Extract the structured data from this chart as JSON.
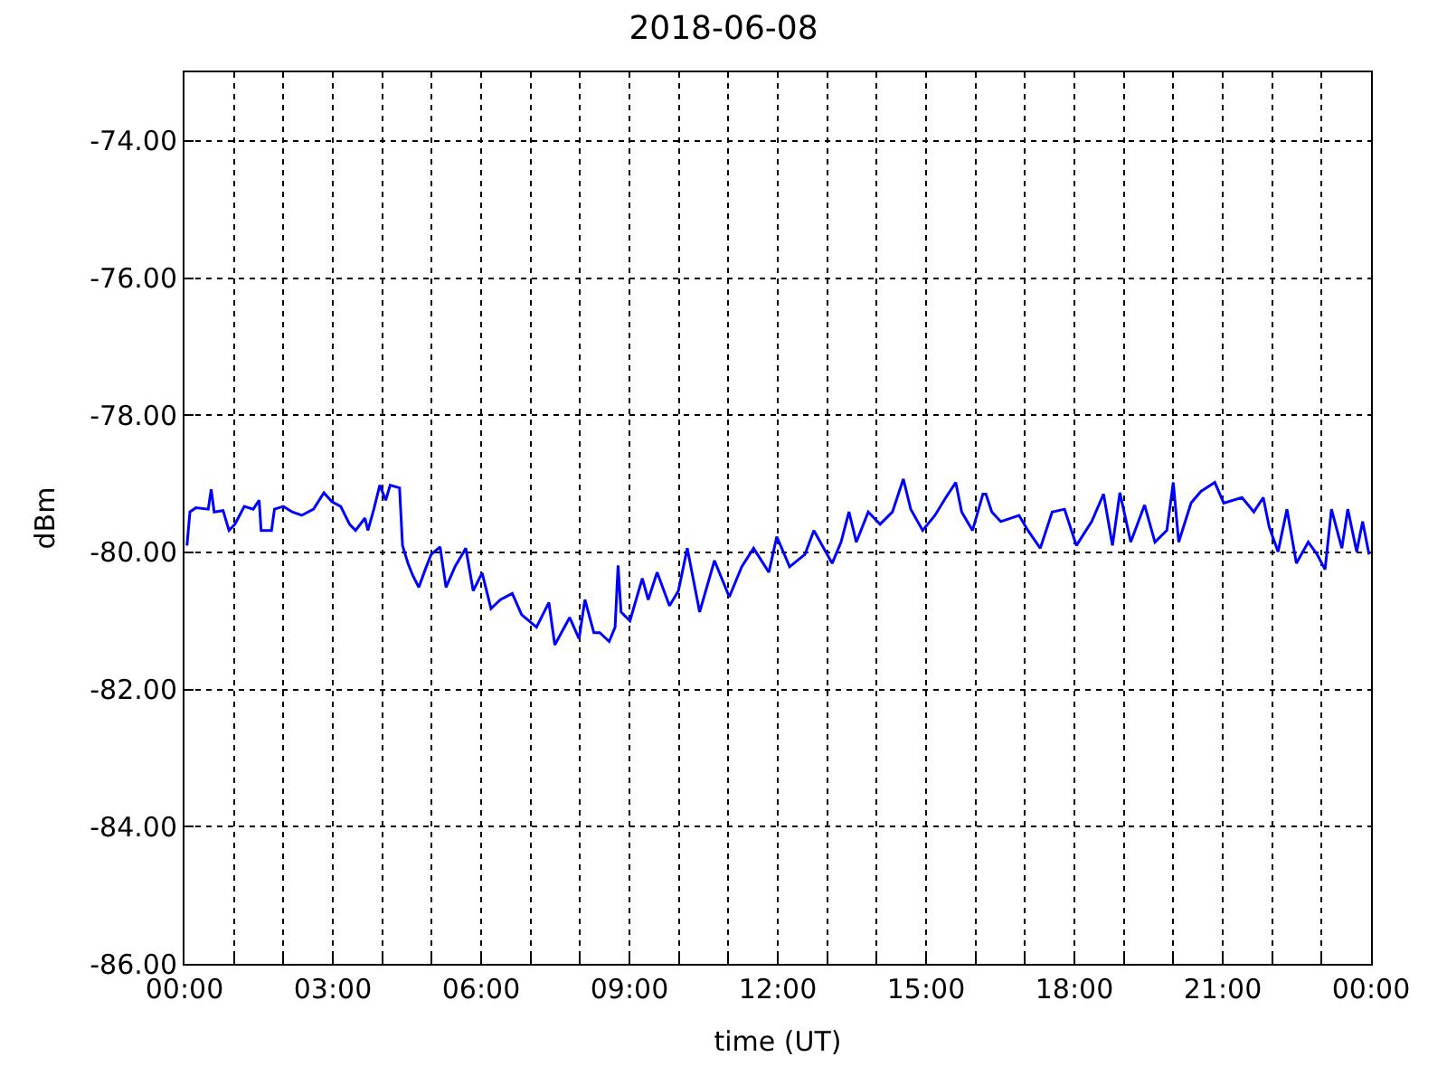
{
  "chart_data": {
    "type": "line",
    "title": "2018-06-08",
    "xlabel": "time (UT)",
    "ylabel": "dBm",
    "xlim": [
      0,
      24
    ],
    "ylim": [
      -86,
      -73
    ],
    "xticks": [
      {
        "value": 0,
        "label": "00:00"
      },
      {
        "value": 1,
        "label": null
      },
      {
        "value": 2,
        "label": null
      },
      {
        "value": 3,
        "label": "03:00"
      },
      {
        "value": 4,
        "label": null
      },
      {
        "value": 5,
        "label": null
      },
      {
        "value": 6,
        "label": "06:00"
      },
      {
        "value": 7,
        "label": null
      },
      {
        "value": 8,
        "label": null
      },
      {
        "value": 9,
        "label": "09:00"
      },
      {
        "value": 10,
        "label": null
      },
      {
        "value": 11,
        "label": null
      },
      {
        "value": 12,
        "label": "12:00"
      },
      {
        "value": 13,
        "label": null
      },
      {
        "value": 14,
        "label": null
      },
      {
        "value": 15,
        "label": "15:00"
      },
      {
        "value": 16,
        "label": null
      },
      {
        "value": 17,
        "label": null
      },
      {
        "value": 18,
        "label": "18:00"
      },
      {
        "value": 19,
        "label": null
      },
      {
        "value": 20,
        "label": null
      },
      {
        "value": 21,
        "label": "21:00"
      },
      {
        "value": 22,
        "label": null
      },
      {
        "value": 23,
        "label": null
      },
      {
        "value": 24,
        "label": "00:00"
      }
    ],
    "yticks": [
      {
        "value": -86,
        "label": "-86.00"
      },
      {
        "value": -84,
        "label": "-84.00"
      },
      {
        "value": -82,
        "label": "-82.00"
      },
      {
        "value": -80,
        "label": "-80.00"
      },
      {
        "value": -78,
        "label": "-78.00"
      },
      {
        "value": -76,
        "label": "-76.00"
      },
      {
        "value": -74,
        "label": "-74.00"
      }
    ],
    "grid": true,
    "marker": "none",
    "line_style": "solid",
    "series": [
      {
        "color": "#0000ff",
        "x": [
          0.05,
          0.11,
          0.23,
          0.48,
          0.54,
          0.6,
          0.78,
          0.9,
          1.02,
          1.21,
          1.39,
          1.51,
          1.55,
          1.76,
          1.82,
          2.0,
          2.18,
          2.37,
          2.61,
          2.82,
          2.98,
          3.16,
          3.34,
          3.46,
          3.65,
          3.71,
          3.83,
          3.95,
          4.07,
          4.16,
          4.35,
          4.41,
          4.52,
          4.62,
          4.74,
          4.87,
          4.99,
          5.17,
          5.29,
          5.47,
          5.69,
          5.84,
          6.02,
          6.2,
          6.39,
          6.63,
          6.82,
          7.12,
          7.37,
          7.49,
          7.79,
          7.98,
          8.1,
          8.28,
          8.4,
          8.59,
          8.71,
          8.77,
          8.83,
          9.01,
          9.26,
          9.38,
          9.56,
          9.81,
          9.99,
          10.17,
          10.42,
          10.72,
          11.02,
          11.27,
          11.51,
          11.82,
          11.98,
          12.24,
          12.55,
          12.73,
          13.1,
          13.28,
          13.44,
          13.59,
          13.83,
          14.07,
          14.32,
          14.54,
          14.69,
          14.93,
          15.18,
          15.4,
          15.6,
          15.72,
          15.94,
          16.15,
          16.21,
          16.33,
          16.51,
          16.88,
          17.06,
          17.31,
          17.55,
          17.8,
          18.04,
          18.35,
          18.59,
          18.77,
          18.92,
          19.14,
          19.42,
          19.63,
          19.87,
          20.0,
          20.11,
          20.36,
          20.56,
          20.84,
          21.02,
          21.39,
          21.63,
          21.82,
          21.94,
          22.12,
          22.3,
          22.49,
          22.73,
          22.91,
          23.07,
          23.2,
          23.41,
          23.53,
          23.71,
          23.83,
          23.96
        ],
        "values": [
          -79.9,
          -79.41,
          -79.35,
          -79.37,
          -79.08,
          -79.41,
          -79.39,
          -79.68,
          -79.59,
          -79.33,
          -79.37,
          -79.24,
          -79.68,
          -79.68,
          -79.37,
          -79.33,
          -79.41,
          -79.46,
          -79.37,
          -79.13,
          -79.26,
          -79.33,
          -79.59,
          -79.68,
          -79.5,
          -79.68,
          -79.37,
          -79.02,
          -79.24,
          -79.02,
          -79.06,
          -79.9,
          -80.16,
          -80.34,
          -80.51,
          -80.25,
          -80.03,
          -79.92,
          -80.51,
          -80.21,
          -79.94,
          -80.56,
          -80.3,
          -80.82,
          -80.69,
          -80.6,
          -80.91,
          -81.09,
          -80.73,
          -81.35,
          -80.95,
          -81.26,
          -80.69,
          -81.17,
          -81.17,
          -81.3,
          -81.09,
          -80.19,
          -80.87,
          -81.0,
          -80.38,
          -80.69,
          -80.29,
          -80.78,
          -80.56,
          -79.94,
          -80.87,
          -80.12,
          -80.65,
          -80.21,
          -79.94,
          -80.29,
          -79.77,
          -80.21,
          -80.03,
          -79.68,
          -80.16,
          -79.85,
          -79.41,
          -79.85,
          -79.41,
          -79.59,
          -79.41,
          -78.93,
          -79.37,
          -79.68,
          -79.46,
          -79.2,
          -78.98,
          -79.41,
          -79.68,
          -79.15,
          -79.15,
          -79.41,
          -79.55,
          -79.46,
          -79.68,
          -79.94,
          -79.41,
          -79.37,
          -79.9,
          -79.55,
          -79.15,
          -79.9,
          -79.13,
          -79.85,
          -79.31,
          -79.85,
          -79.68,
          -78.98,
          -79.85,
          -79.28,
          -79.11,
          -78.98,
          -79.28,
          -79.2,
          -79.41,
          -79.2,
          -79.63,
          -79.99,
          -79.37,
          -80.16,
          -79.85,
          -80.03,
          -80.25,
          -79.37,
          -79.94,
          -79.37,
          -79.99,
          -79.55,
          -80.03
        ]
      }
    ]
  }
}
